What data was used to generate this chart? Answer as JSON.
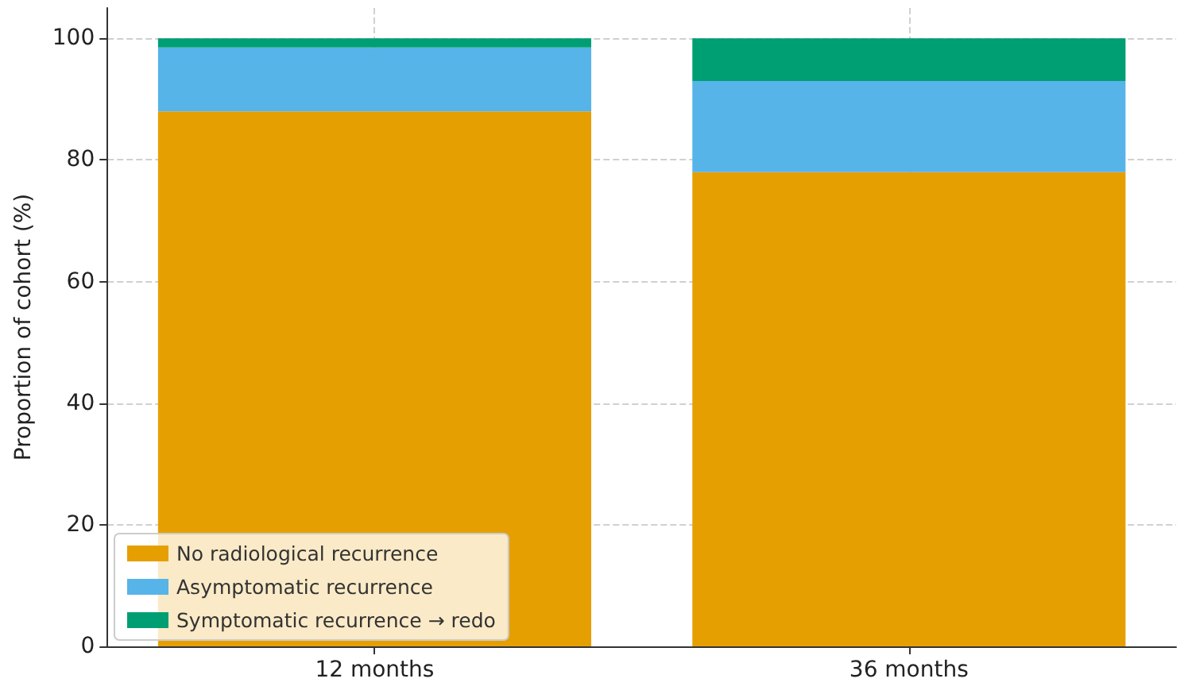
{
  "chart_data": {
    "type": "bar",
    "stacked": true,
    "ylabel": "Proportion of cohort (%)",
    "categories": [
      "12 months",
      "36 months"
    ],
    "series": [
      {
        "name": "No radiological recurrence",
        "color": "#e69f00",
        "values": [
          88,
          78
        ]
      },
      {
        "name": "Asymptomatic recurrence",
        "color": "#56b4e9",
        "values": [
          10.5,
          15
        ]
      },
      {
        "name": "Symptomatic recurrence → redo",
        "color": "#009e73",
        "values": [
          1.5,
          7
        ]
      }
    ],
    "ylim": [
      0,
      105
    ],
    "yticks": [
      0,
      20,
      40,
      60,
      80,
      100
    ],
    "grid": true,
    "legend": "bottom left"
  }
}
